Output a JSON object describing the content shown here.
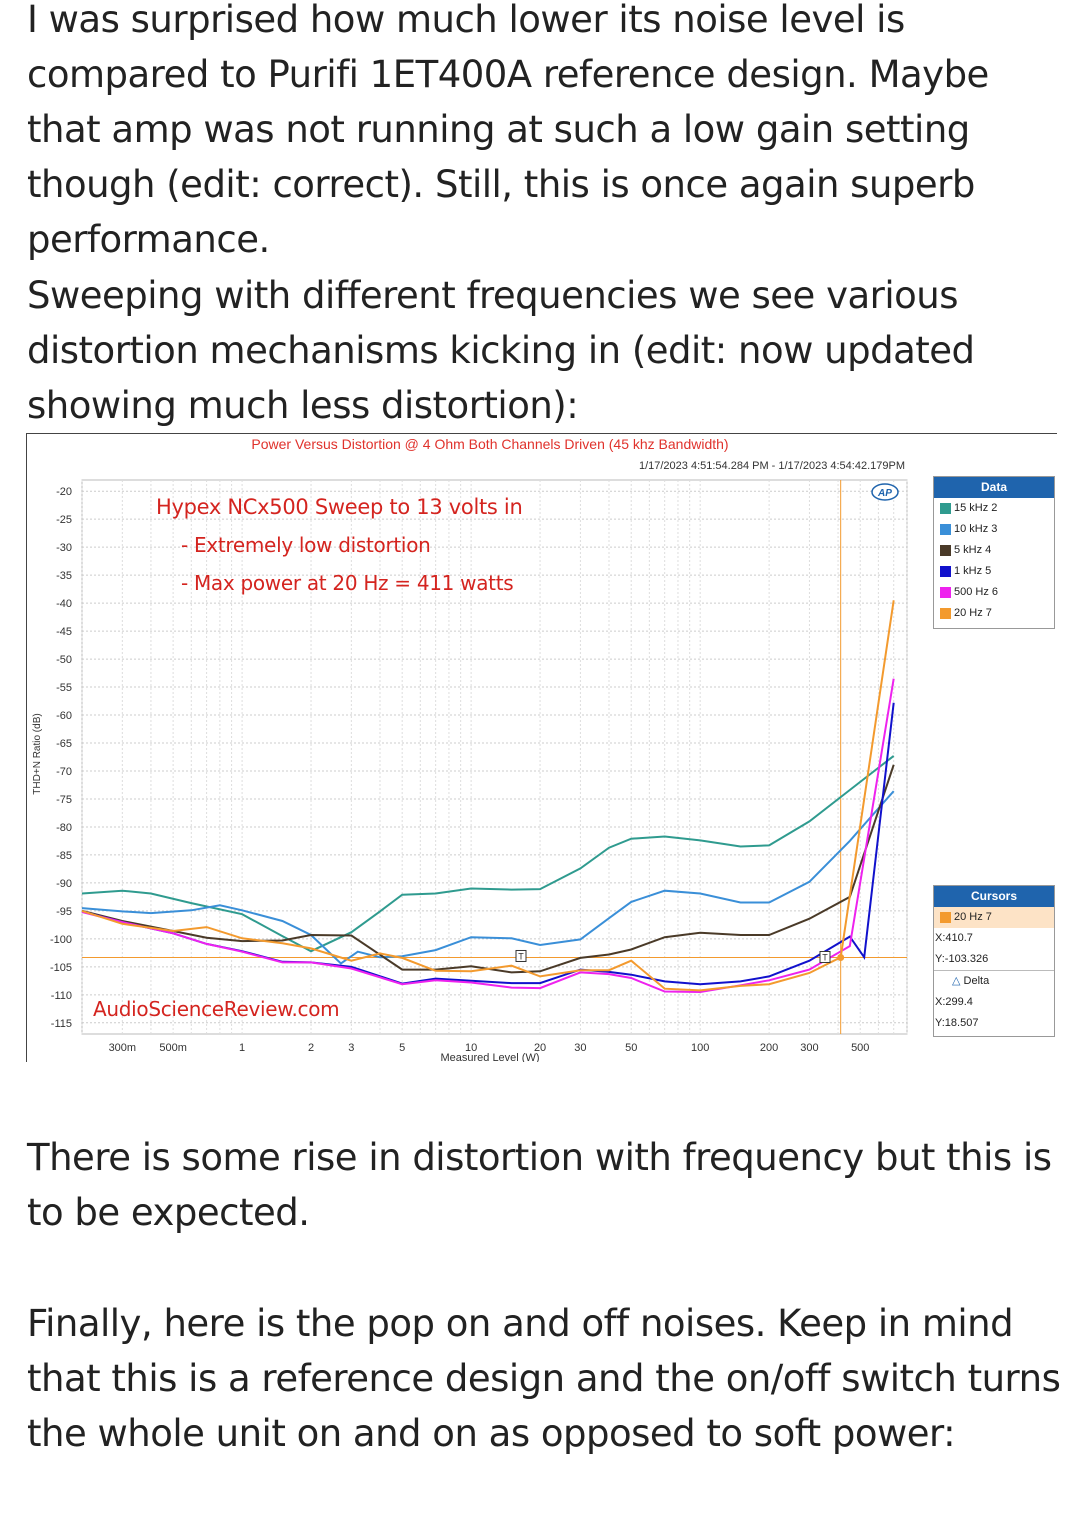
{
  "text": {
    "p1": "I was surprised how much lower its noise level is compared to Purifi 1ET400A reference design. Maybe that amp was not running at such a low gain setting though (edit: correct). Still, this is once again superb performance.",
    "p2": "Sweeping with different frequencies we see various distortion mechanisms kicking in (edit: now updated showing much less distortion):",
    "p3": "There is some rise in distortion with frequency but this is to be expected.",
    "p4": "Finally, here is the pop on and off noises. Keep in mind that this is a reference design and the on/off switch turns the whole unit on and on as opposed to soft power:"
  },
  "chart_data": {
    "type": "line",
    "title": "Power Versus Distortion @ 4 Ohm Both Channels Driven (45 khz Bandwidth)",
    "subtitle": "1/17/2023 4:51:54.284 PM - 1/17/2023 4:54:42.179PM",
    "xlabel": "Measured Level (W)",
    "ylabel": "THD+N Ratio (dB)",
    "xscale": "log",
    "xlim": [
      0.2,
      800
    ],
    "ylim": [
      -117,
      -18
    ],
    "y_ticks": [
      -20,
      -25,
      -30,
      -35,
      -40,
      -45,
      -50,
      -55,
      -60,
      -65,
      -70,
      -75,
      -80,
      -85,
      -90,
      -95,
      -100,
      -105,
      -110,
      -115
    ],
    "x_ticks": [
      {
        "v": 0.3,
        "label": "300m"
      },
      {
        "v": 0.5,
        "label": "500m"
      },
      {
        "v": 1,
        "label": "1"
      },
      {
        "v": 2,
        "label": "2"
      },
      {
        "v": 3,
        "label": "3"
      },
      {
        "v": 5,
        "label": "5"
      },
      {
        "v": 10,
        "label": "10"
      },
      {
        "v": 20,
        "label": "20"
      },
      {
        "v": 30,
        "label": "30"
      },
      {
        "v": 50,
        "label": "50"
      },
      {
        "v": 100,
        "label": "100"
      },
      {
        "v": 200,
        "label": "200"
      },
      {
        "v": 300,
        "label": "300"
      },
      {
        "v": 500,
        "label": "500"
      }
    ],
    "annotations": [
      "Hypex NCx500 Sweep to 13 volts in",
      "- Extremely low distortion",
      "- Max power at 20 Hz = 411 watts"
    ],
    "watermark": "AudioScienceReview.com",
    "ap_logo": "AP",
    "cursor": {
      "x": 410.7,
      "y": -103.326
    },
    "legend_title": "Data",
    "series": [
      {
        "name": "15 kHz 2",
        "color": "#2f9b8f",
        "points": [
          [
            0.2,
            -91.9
          ],
          [
            0.3,
            -91.4
          ],
          [
            0.4,
            -91.9
          ],
          [
            0.6,
            -93.6
          ],
          [
            1,
            -95.6
          ],
          [
            1.5,
            -99.5
          ],
          [
            2,
            -102.2
          ],
          [
            3,
            -98.8
          ],
          [
            4,
            -95.1
          ],
          [
            5,
            -92.1
          ],
          [
            7,
            -91.9
          ],
          [
            10,
            -91.0
          ],
          [
            15,
            -91.2
          ],
          [
            20,
            -91.1
          ],
          [
            30,
            -87.4
          ],
          [
            40,
            -83.7
          ],
          [
            50,
            -82.1
          ],
          [
            70,
            -81.7
          ],
          [
            100,
            -82.4
          ],
          [
            150,
            -83.5
          ],
          [
            200,
            -83.3
          ],
          [
            300,
            -79.0
          ],
          [
            450,
            -73.4
          ],
          [
            700,
            -67.3
          ]
        ]
      },
      {
        "name": "10 kHz 3",
        "color": "#3a8fd8",
        "points": [
          [
            0.2,
            -94.5
          ],
          [
            0.3,
            -95.1
          ],
          [
            0.4,
            -95.4
          ],
          [
            0.6,
            -94.9
          ],
          [
            0.8,
            -94.0
          ],
          [
            1,
            -94.9
          ],
          [
            1.5,
            -96.8
          ],
          [
            2,
            -99.3
          ],
          [
            2.7,
            -104.4
          ],
          [
            3.2,
            -102.3
          ],
          [
            4,
            -103.3
          ],
          [
            5,
            -103.1
          ],
          [
            7,
            -102.0
          ],
          [
            10,
            -99.7
          ],
          [
            15,
            -99.9
          ],
          [
            20,
            -101.1
          ],
          [
            30,
            -100.1
          ],
          [
            40,
            -96.3
          ],
          [
            50,
            -93.4
          ],
          [
            70,
            -91.4
          ],
          [
            100,
            -91.9
          ],
          [
            150,
            -93.5
          ],
          [
            200,
            -93.5
          ],
          [
            300,
            -89.8
          ],
          [
            450,
            -82.5
          ],
          [
            700,
            -73.6
          ]
        ]
      },
      {
        "name": "5 kHz 4",
        "color": "#4a3a28",
        "points": [
          [
            0.2,
            -95.0
          ],
          [
            0.3,
            -96.8
          ],
          [
            0.5,
            -98.6
          ],
          [
            0.7,
            -99.8
          ],
          [
            1,
            -100.4
          ],
          [
            1.5,
            -100.3
          ],
          [
            2,
            -99.3
          ],
          [
            3,
            -99.4
          ],
          [
            5,
            -105.5
          ],
          [
            7,
            -105.5
          ],
          [
            10,
            -104.9
          ],
          [
            15,
            -106.0
          ],
          [
            20,
            -105.8
          ],
          [
            30,
            -103.4
          ],
          [
            40,
            -102.8
          ],
          [
            50,
            -101.9
          ],
          [
            70,
            -99.7
          ],
          [
            100,
            -98.9
          ],
          [
            150,
            -99.3
          ],
          [
            200,
            -99.3
          ],
          [
            300,
            -96.4
          ],
          [
            450,
            -92.5
          ],
          [
            700,
            -68.9
          ]
        ]
      },
      {
        "name": "1 kHz 5",
        "color": "#1111cc",
        "points": [
          [
            0.2,
            -95.1
          ],
          [
            0.3,
            -97.0
          ],
          [
            0.5,
            -99.0
          ],
          [
            0.7,
            -100.9
          ],
          [
            1,
            -102.2
          ],
          [
            1.5,
            -104.1
          ],
          [
            2,
            -104.2
          ],
          [
            3,
            -105.0
          ],
          [
            5,
            -108.0
          ],
          [
            7,
            -107.1
          ],
          [
            10,
            -107.5
          ],
          [
            15,
            -107.9
          ],
          [
            20,
            -107.9
          ],
          [
            30,
            -105.5
          ],
          [
            40,
            -105.9
          ],
          [
            50,
            -106.4
          ],
          [
            70,
            -107.6
          ],
          [
            100,
            -108.1
          ],
          [
            150,
            -107.6
          ],
          [
            200,
            -106.7
          ],
          [
            300,
            -103.9
          ],
          [
            450,
            -99.6
          ],
          [
            520,
            -103.3
          ],
          [
            700,
            -57.8
          ]
        ]
      },
      {
        "name": "500 Hz 6",
        "color": "#ee22ee",
        "points": [
          [
            0.2,
            -95.2
          ],
          [
            0.3,
            -97.0
          ],
          [
            0.5,
            -99.0
          ],
          [
            0.7,
            -100.9
          ],
          [
            1,
            -102.3
          ],
          [
            1.5,
            -104.2
          ],
          [
            2,
            -104.2
          ],
          [
            3,
            -105.3
          ],
          [
            5,
            -108.1
          ],
          [
            7,
            -107.4
          ],
          [
            10,
            -107.8
          ],
          [
            15,
            -108.7
          ],
          [
            20,
            -108.8
          ],
          [
            30,
            -106.0
          ],
          [
            40,
            -106.3
          ],
          [
            50,
            -107.0
          ],
          [
            70,
            -109.4
          ],
          [
            100,
            -109.5
          ],
          [
            150,
            -108.3
          ],
          [
            200,
            -107.4
          ],
          [
            300,
            -105.5
          ],
          [
            450,
            -101.3
          ],
          [
            700,
            -53.5
          ]
        ]
      },
      {
        "name": "20 Hz 7",
        "color": "#f39a2e",
        "points": [
          [
            0.2,
            -95.0
          ],
          [
            0.3,
            -97.3
          ],
          [
            0.5,
            -98.6
          ],
          [
            0.7,
            -97.9
          ],
          [
            1,
            -99.9
          ],
          [
            1.5,
            -100.8
          ],
          [
            2,
            -101.7
          ],
          [
            3,
            -103.9
          ],
          [
            4,
            -102.6
          ],
          [
            5,
            -103.4
          ],
          [
            7,
            -105.7
          ],
          [
            10,
            -105.8
          ],
          [
            15,
            -104.8
          ],
          [
            20,
            -106.7
          ],
          [
            30,
            -105.6
          ],
          [
            40,
            -105.6
          ],
          [
            50,
            -103.9
          ],
          [
            70,
            -108.9
          ],
          [
            100,
            -109.2
          ],
          [
            150,
            -108.4
          ],
          [
            200,
            -108.1
          ],
          [
            300,
            -106.1
          ],
          [
            410.7,
            -103.3
          ],
          [
            700,
            -39.5
          ]
        ]
      }
    ]
  },
  "cursors": {
    "title": "Cursors",
    "channel": "20 Hz 7",
    "x_text": "X:410.7",
    "y_text": "Y:-103.326",
    "delta_label": "Delta",
    "dx_text": "X:299.4",
    "dy_text": "Y:18.507"
  }
}
